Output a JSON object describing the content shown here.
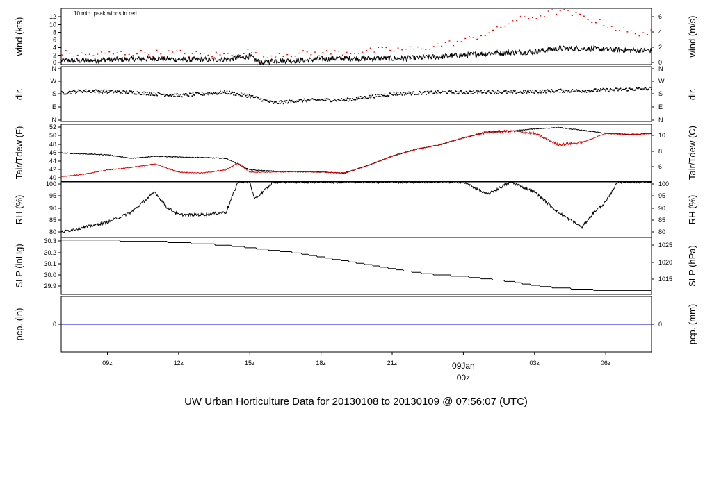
{
  "footer_title": "UW Urban Horticulture Data for 20130108  to  20130109 @ 07:56:07  (UTC)",
  "colors": {
    "primary": "#000000",
    "peak": "#ee0000",
    "dew": "#dd0000",
    "precip": "#0000cc",
    "footer": "#0000ee",
    "day_label": "#ee0000"
  },
  "chart_data": {
    "type": "line",
    "x_axis": {
      "ticks": [
        "09z",
        "12z",
        "15z",
        "18z",
        "21z",
        "03z",
        "06z"
      ],
      "day_label_top": "09Jan",
      "day_label_bottom": "00z",
      "range_hours": [
        7.05,
        31.93
      ]
    },
    "panels": [
      {
        "id": "wind",
        "left_label": "wind (kts)",
        "right_label": "wind (m/s)",
        "annotation": "10 min. peak winds in red",
        "left_ticks": [
          "0",
          "2",
          "4",
          "6",
          "8",
          "10",
          "12"
        ],
        "right_ticks": [
          "0",
          "2",
          "4",
          "6"
        ],
        "ylim": [
          0,
          14
        ],
        "series": [
          {
            "name": "mean wind",
            "color": "#000000",
            "x": [
              7.0,
              8.0,
              9.0,
              10.0,
              11.0,
              12.0,
              13.0,
              14.0,
              15.0,
              15.5,
              16.0,
              17.0,
              18.0,
              19.0,
              20.0,
              21.0,
              22.0,
              23.0,
              24.0,
              25.0,
              26.0,
              27.0,
              28.0,
              29.0,
              30.0,
              31.0,
              31.93
            ],
            "y": [
              1.0,
              1.0,
              1.2,
              1.3,
              1.5,
              1.3,
              1.2,
              1.3,
              2.0,
              0.3,
              1.0,
              1.0,
              1.3,
              1.6,
              1.5,
              1.5,
              1.6,
              2.0,
              2.3,
              2.8,
              3.0,
              3.2,
              4.0,
              4.0,
              3.8,
              3.5,
              3.5
            ]
          },
          {
            "name": "10 min peak",
            "color": "#ee0000",
            "x": [
              7.0,
              8.0,
              9.0,
              10.0,
              11.0,
              12.0,
              13.0,
              14.0,
              15.0,
              15.5,
              16.0,
              17.0,
              18.0,
              19.0,
              20.0,
              21.0,
              22.0,
              23.0,
              24.0,
              25.0,
              25.5,
              26.0,
              27.0,
              28.0,
              29.0,
              30.0,
              31.0,
              31.93
            ],
            "y": [
              3.0,
              2.5,
              2.8,
              3.0,
              3.0,
              3.0,
              2.6,
              2.6,
              3.5,
              1.2,
              2.8,
              2.8,
              3.0,
              3.2,
              3.5,
              3.8,
              4.0,
              5.0,
              6.0,
              8.0,
              9.0,
              11.0,
              12.0,
              13.5,
              12.0,
              10.0,
              8.0,
              8.0
            ]
          }
        ]
      },
      {
        "id": "dir",
        "left_label": "dir.",
        "right_label": "dir.",
        "left_ticks": [
          "N",
          "E",
          "S",
          "W",
          "N"
        ],
        "right_ticks": [
          "N",
          "E",
          "S",
          "W",
          "N"
        ],
        "ylim": [
          0,
          360
        ],
        "series": [
          {
            "name": "wind direction",
            "color": "#000000",
            "x": [
              7.0,
              8.0,
              9.0,
              10.0,
              11.0,
              12.0,
              13.0,
              14.0,
              15.0,
              16.0,
              17.0,
              18.0,
              19.0,
              20.0,
              21.0,
              22.0,
              23.0,
              24.0,
              25.0,
              26.0,
              27.0,
              28.0,
              29.0,
              30.0,
              31.0,
              31.93
            ],
            "y": [
              190,
              205,
              200,
              195,
              185,
              175,
              185,
              195,
              170,
              125,
              140,
              145,
              145,
              165,
              185,
              190,
              195,
              195,
              200,
              195,
              200,
              205,
              205,
              210,
              215,
              220
            ]
          }
        ]
      },
      {
        "id": "temp",
        "left_label": "Tair/Tdew (F)",
        "right_label": "Tair/Tdew (C)",
        "left_ticks": [
          "40",
          "42",
          "44",
          "46",
          "48",
          "50",
          "52"
        ],
        "right_ticks": [
          "6",
          "8",
          "10"
        ],
        "ylim": [
          40,
          52.5
        ],
        "series": [
          {
            "name": "Tair",
            "color": "#000000",
            "x": [
              7.0,
              9.0,
              10.0,
              11.0,
              12.0,
              13.0,
              14.0,
              15.0,
              16.0,
              17.0,
              18.0,
              19.0,
              20.0,
              21.0,
              22.0,
              23.0,
              24.0,
              25.0,
              26.0,
              27.0,
              28.0,
              29.0,
              30.0,
              31.0,
              31.93
            ],
            "y": [
              46.2,
              45.8,
              45.0,
              45.5,
              45.3,
              45.2,
              45.0,
              42.5,
              42.2,
              42.1,
              42.0,
              41.8,
              43.5,
              45.5,
              47.0,
              48.0,
              49.5,
              50.8,
              51.0,
              51.5,
              51.8,
              51.2,
              50.5,
              50.3,
              50.5
            ]
          },
          {
            "name": "Tdew",
            "color": "#dd0000",
            "x": [
              7.0,
              8.0,
              9.0,
              10.0,
              11.0,
              12.0,
              13.0,
              14.0,
              14.5,
              15.0,
              16.0,
              17.0,
              18.0,
              19.0,
              20.0,
              21.0,
              22.0,
              23.0,
              24.0,
              25.0,
              26.0,
              27.0,
              28.0,
              29.0,
              30.0,
              31.0,
              31.93
            ],
            "y": [
              41.0,
              41.5,
              42.5,
              43.0,
              43.8,
              42.0,
              41.8,
              42.5,
              44.0,
              42.0,
              42.0,
              42.1,
              42.0,
              41.8,
              43.5,
              45.5,
              47.0,
              48.0,
              49.5,
              50.8,
              51.0,
              50.5,
              48.0,
              48.5,
              50.5,
              50.2,
              50.5
            ]
          }
        ]
      },
      {
        "id": "rh",
        "left_label": "RH (%)",
        "right_label": "RH (%)",
        "left_ticks": [
          "80",
          "85",
          "90",
          "95",
          "100"
        ],
        "right_ticks": [
          "80",
          "85",
          "90",
          "95",
          "100"
        ],
        "ylim": [
          78,
          100
        ],
        "series": [
          {
            "name": "RH",
            "color": "#000000",
            "x": [
              7.0,
              8.0,
              9.0,
              10.0,
              11.0,
              11.5,
              12.0,
              13.0,
              14.0,
              14.5,
              15.0,
              15.2,
              16.0,
              24.0,
              25.0,
              26.0,
              27.0,
              28.0,
              29.0,
              29.5,
              30.0,
              30.5,
              31.0,
              31.93
            ],
            "y": [
              80.0,
              82.0,
              84.0,
              88.0,
              96.0,
              90.0,
              87.0,
              87.0,
              88.0,
              100.0,
              100.0,
              93.0,
              100.0,
              100.0,
              95.0,
              100.0,
              96.0,
              88.0,
              82.0,
              88.0,
              92.0,
              100.0,
              100.0,
              100.0
            ]
          }
        ]
      },
      {
        "id": "slp",
        "left_label": "SLP (inHg)",
        "right_label": "SLP (hPa)",
        "left_ticks": [
          "29.9",
          "30.0",
          "30.1",
          "30.2",
          "30.3"
        ],
        "right_ticks": [
          "1015",
          "1020",
          "1025"
        ],
        "ylim": [
          29.87,
          30.31
        ],
        "series": [
          {
            "name": "SLP",
            "color": "#000000",
            "x": [
              7.0,
              9.0,
              10.0,
              11.0,
              12.0,
              13.0,
              14.0,
              15.0,
              16.0,
              17.0,
              18.0,
              19.0,
              20.0,
              21.0,
              22.0,
              23.0,
              24.0,
              25.0,
              26.0,
              27.0,
              28.0,
              29.0,
              30.0,
              31.0,
              31.93
            ],
            "y": [
              30.29,
              30.29,
              30.28,
              30.28,
              30.27,
              30.26,
              30.25,
              30.23,
              30.21,
              30.19,
              30.16,
              30.13,
              30.1,
              30.07,
              30.04,
              30.02,
              30.01,
              29.99,
              29.97,
              29.94,
              29.92,
              29.91,
              29.9,
              29.9,
              29.9
            ]
          }
        ]
      },
      {
        "id": "pcp",
        "left_label": "pcp. (in)",
        "right_label": "pcp. (mm)",
        "left_ticks": [
          "0"
        ],
        "right_ticks": [
          "0"
        ],
        "ylim": [
          -1,
          1
        ],
        "series": [
          {
            "name": "precipitation",
            "color": "#0000cc",
            "x": [
              7.05,
              31.93
            ],
            "y": [
              0,
              0
            ]
          }
        ]
      }
    ]
  }
}
